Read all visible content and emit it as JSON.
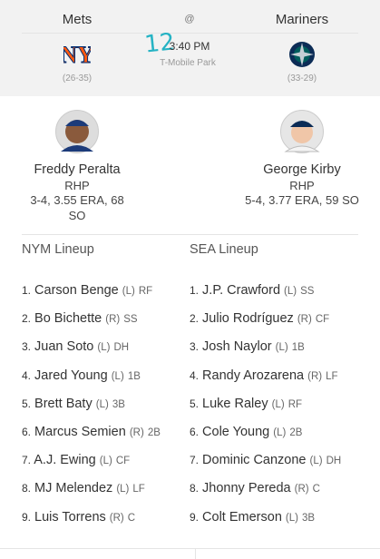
{
  "header": {
    "away_team": "Mets",
    "at": "@",
    "home_team": "Mariners",
    "time": "3:40 PM",
    "venue": "T-Mobile Park",
    "away_record": "(26-35)",
    "home_record": "(33-29)",
    "annotation": "12"
  },
  "pitchers": [
    {
      "name": "Freddy Peralta",
      "hand": "RHP",
      "stats": "3-4, 3.55 ERA, 68 SO"
    },
    {
      "name": "George Kirby",
      "hand": "RHP",
      "stats": "5-4, 3.77 ERA, 59 SO"
    }
  ],
  "lineups": [
    {
      "title": "NYM Lineup",
      "players": [
        {
          "order": "1.",
          "name": "Carson Benge",
          "bats": "(L)",
          "pos": "RF"
        },
        {
          "order": "2.",
          "name": "Bo Bichette",
          "bats": "(R)",
          "pos": "SS"
        },
        {
          "order": "3.",
          "name": "Juan Soto",
          "bats": "(L)",
          "pos": "DH"
        },
        {
          "order": "4.",
          "name": "Jared Young",
          "bats": "(L)",
          "pos": "1B"
        },
        {
          "order": "5.",
          "name": "Brett Baty",
          "bats": "(L)",
          "pos": "3B"
        },
        {
          "order": "6.",
          "name": "Marcus Semien",
          "bats": "(R)",
          "pos": "2B"
        },
        {
          "order": "7.",
          "name": "A.J. Ewing",
          "bats": "(L)",
          "pos": "CF"
        },
        {
          "order": "8.",
          "name": "MJ Melendez",
          "bats": "(L)",
          "pos": "LF"
        },
        {
          "order": "9.",
          "name": "Luis Torrens",
          "bats": "(R)",
          "pos": "C"
        }
      ]
    },
    {
      "title": "SEA Lineup",
      "players": [
        {
          "order": "1.",
          "name": "J.P. Crawford",
          "bats": "(L)",
          "pos": "SS"
        },
        {
          "order": "2.",
          "name": "Julio Rodríguez",
          "bats": "(R)",
          "pos": "CF"
        },
        {
          "order": "3.",
          "name": "Josh Naylor",
          "bats": "(L)",
          "pos": "1B"
        },
        {
          "order": "4.",
          "name": "Randy Arozarena",
          "bats": "(R)",
          "pos": "LF"
        },
        {
          "order": "5.",
          "name": "Luke Raley",
          "bats": "(L)",
          "pos": "RF"
        },
        {
          "order": "6.",
          "name": "Cole Young",
          "bats": "(L)",
          "pos": "2B"
        },
        {
          "order": "7.",
          "name": "Dominic Canzone",
          "bats": "(L)",
          "pos": "DH"
        },
        {
          "order": "8.",
          "name": "Jhonny Pereda",
          "bats": "(R)",
          "pos": "C"
        },
        {
          "order": "9.",
          "name": "Colt Emerson",
          "bats": "(L)",
          "pos": "3B"
        }
      ]
    }
  ]
}
